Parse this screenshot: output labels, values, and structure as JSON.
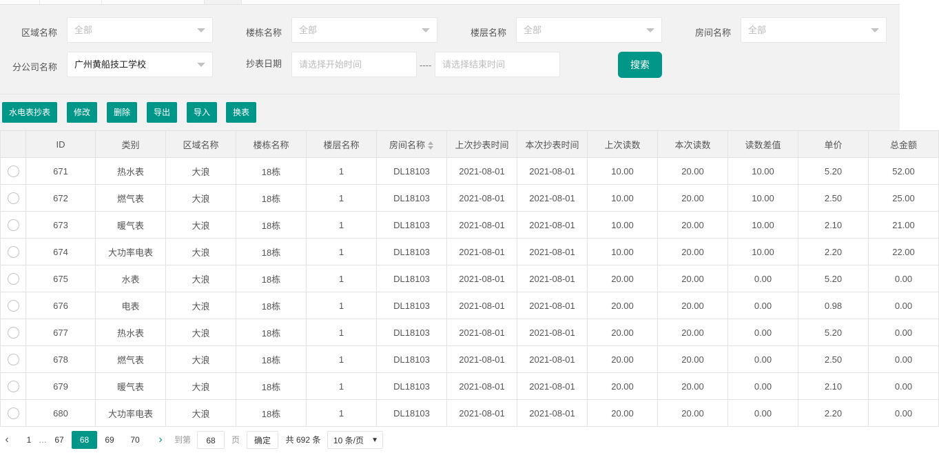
{
  "filters": {
    "area": {
      "label": "区域名称",
      "value": "全部"
    },
    "building": {
      "label": "楼栋名称",
      "value": "全部"
    },
    "floor": {
      "label": "楼层名称",
      "value": "全部"
    },
    "room": {
      "label": "房间名称",
      "value": "全部"
    },
    "branch": {
      "label": "分公司名称",
      "value": "广州黄船技工学校"
    },
    "date": {
      "label": "抄表日期",
      "start_placeholder": "请选择开始时间",
      "separator": "----",
      "end_placeholder": "请选择结束时间"
    },
    "search": "搜索"
  },
  "toolbar": {
    "read_meter": "水电表抄表",
    "edit": "修改",
    "delete": "删除",
    "export": "导出",
    "import": "导入",
    "replace": "换表"
  },
  "table": {
    "headers": [
      "ID",
      "类别",
      "区域名称",
      "楼栋名称",
      "楼层名称",
      "房间名称",
      "上次抄表时间",
      "本次抄表时间",
      "上次读数",
      "本次读数",
      "读数差值",
      "单价",
      "总金额"
    ],
    "rows": [
      [
        "671",
        "热水表",
        "大浪",
        "18栋",
        "1",
        "DL18103",
        "2021-08-01",
        "2021-08-01",
        "10.00",
        "20.00",
        "10.00",
        "5.20",
        "52.00"
      ],
      [
        "672",
        "燃气表",
        "大浪",
        "18栋",
        "1",
        "DL18103",
        "2021-08-01",
        "2021-08-01",
        "10.00",
        "20.00",
        "10.00",
        "2.50",
        "25.00"
      ],
      [
        "673",
        "暖气表",
        "大浪",
        "18栋",
        "1",
        "DL18103",
        "2021-08-01",
        "2021-08-01",
        "10.00",
        "20.00",
        "10.00",
        "2.10",
        "21.00"
      ],
      [
        "674",
        "大功率电表",
        "大浪",
        "18栋",
        "1",
        "DL18103",
        "2021-08-01",
        "2021-08-01",
        "10.00",
        "20.00",
        "10.00",
        "2.20",
        "22.00"
      ],
      [
        "675",
        "水表",
        "大浪",
        "18栋",
        "1",
        "DL18103",
        "2021-08-01",
        "2021-08-01",
        "20.00",
        "20.00",
        "0.00",
        "5.20",
        "0.00"
      ],
      [
        "676",
        "电表",
        "大浪",
        "18栋",
        "1",
        "DL18103",
        "2021-08-01",
        "2021-08-01",
        "20.00",
        "20.00",
        "0.00",
        "0.98",
        "0.00"
      ],
      [
        "677",
        "热水表",
        "大浪",
        "18栋",
        "1",
        "DL18103",
        "2021-08-01",
        "2021-08-01",
        "20.00",
        "20.00",
        "0.00",
        "5.20",
        "0.00"
      ],
      [
        "678",
        "燃气表",
        "大浪",
        "18栋",
        "1",
        "DL18103",
        "2021-08-01",
        "2021-08-01",
        "20.00",
        "20.00",
        "0.00",
        "2.50",
        "0.00"
      ],
      [
        "679",
        "暖气表",
        "大浪",
        "18栋",
        "1",
        "DL18103",
        "2021-08-01",
        "2021-08-01",
        "20.00",
        "20.00",
        "0.00",
        "2.10",
        "0.00"
      ],
      [
        "680",
        "大功率电表",
        "大浪",
        "18栋",
        "1",
        "DL18103",
        "2021-08-01",
        "2021-08-01",
        "20.00",
        "20.00",
        "0.00",
        "2.20",
        "0.00"
      ]
    ]
  },
  "pager": {
    "first": "1",
    "ellipsis": "…",
    "pages": [
      "67",
      "68",
      "69",
      "70"
    ],
    "current": "68",
    "goto_label": "到第",
    "goto_value": "68",
    "page_unit": "页",
    "confirm": "确定",
    "total": "共 692 条",
    "page_size": "10 条/页"
  },
  "colors": {
    "accent": "#009688"
  }
}
